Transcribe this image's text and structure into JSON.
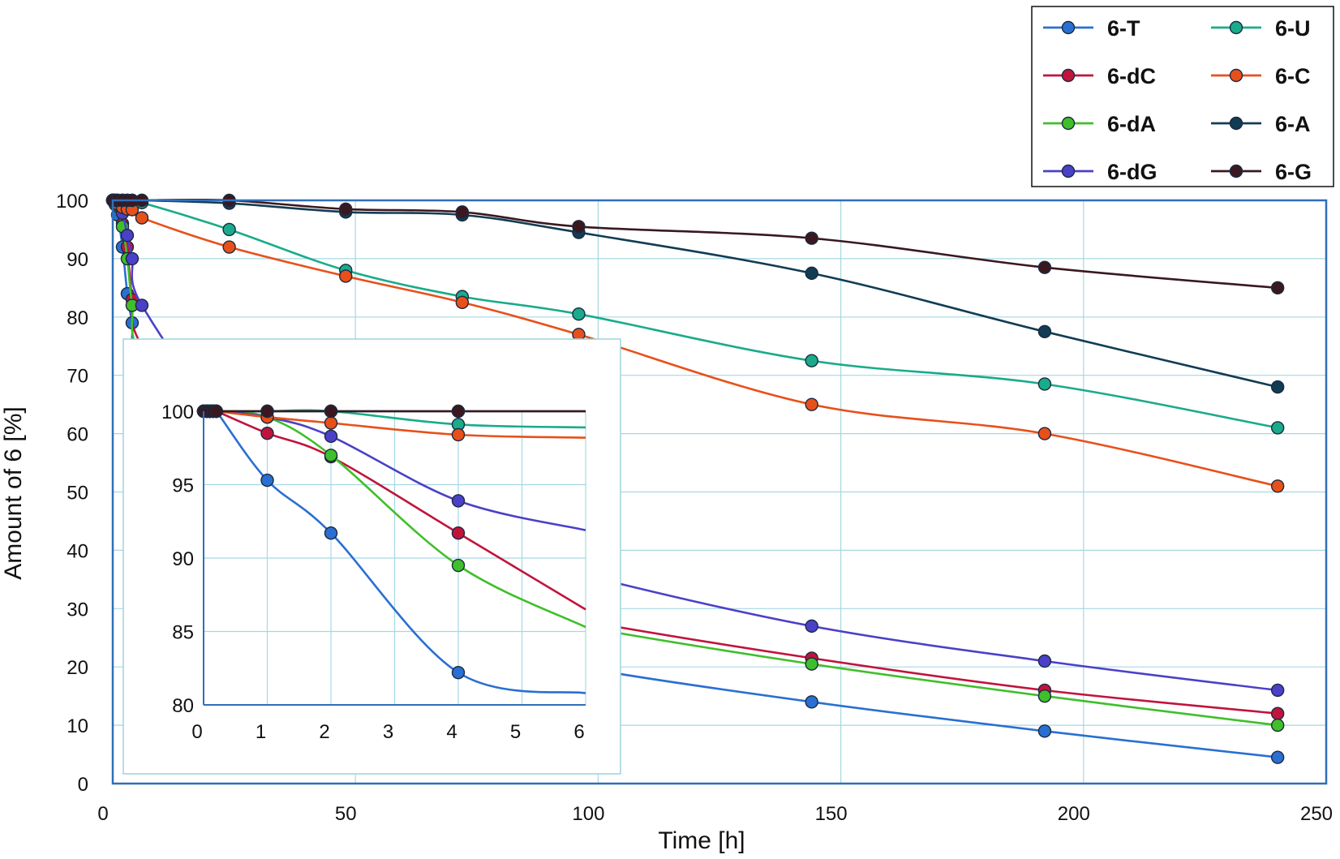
{
  "chart_data": [
    {
      "id": "main",
      "type": "line",
      "title": "",
      "xlabel": "Time [h]",
      "ylabel": "Amount of 6 [%]",
      "xlim": [
        0,
        250
      ],
      "ylim": [
        0,
        100
      ],
      "xticks": [
        0,
        50,
        100,
        150,
        200,
        250
      ],
      "yticks": [
        0,
        10,
        20,
        30,
        40,
        50,
        60,
        70,
        80,
        90,
        100
      ],
      "grid": true,
      "legend": "top-right",
      "series": [
        {
          "name": "6-T",
          "color": "#2a6fd1",
          "x": [
            0,
            0.5,
            1,
            2,
            3,
            4,
            6,
            24,
            48,
            72,
            96,
            144,
            192,
            240
          ],
          "y": [
            100,
            99.3,
            97.5,
            92,
            84,
            79,
            70,
            45,
            33,
            25,
            20,
            14,
            9,
            4.5
          ]
        },
        {
          "name": "6-dC",
          "color": "#c0143c",
          "x": [
            0,
            0.5,
            1,
            2,
            3,
            4,
            6,
            24,
            48,
            72,
            96,
            144,
            192,
            240
          ],
          "y": [
            100,
            99.9,
            99.2,
            96,
            92,
            83,
            75,
            53,
            40,
            32,
            28,
            21.5,
            16,
            12
          ]
        },
        {
          "name": "6-dA",
          "color": "#3fbf2a",
          "x": [
            0,
            0.5,
            1,
            2,
            3,
            4,
            6,
            24,
            48,
            72,
            96,
            144,
            192,
            240
          ],
          "y": [
            100,
            99.9,
            99,
            95.5,
            90,
            82,
            73,
            52,
            39,
            31,
            27,
            20.5,
            15,
            10
          ]
        },
        {
          "name": "6-dG",
          "color": "#4b40c8",
          "x": [
            0,
            0.5,
            1,
            2,
            3,
            4,
            6,
            24,
            48,
            72,
            96,
            144,
            192,
            240
          ],
          "y": [
            100,
            99.9,
            99.3,
            97.8,
            94,
            90,
            82,
            62,
            50,
            42,
            36,
            27,
            21,
            16
          ]
        },
        {
          "name": "6-U",
          "color": "#1aab8a",
          "x": [
            0,
            0.5,
            1,
            2,
            3,
            4,
            6,
            24,
            48,
            72,
            96,
            144,
            192,
            240
          ],
          "y": [
            100,
            100,
            100,
            100,
            100,
            99.7,
            99.6,
            95,
            88,
            83.5,
            80.5,
            72.5,
            68.5,
            61
          ]
        },
        {
          "name": "6-C",
          "color": "#e8501a",
          "x": [
            0,
            0.5,
            1,
            2,
            3,
            4,
            6,
            24,
            48,
            72,
            96,
            144,
            192,
            240
          ],
          "y": [
            100,
            99.9,
            99.4,
            98.8,
            98.5,
            98.4,
            97,
            92,
            87,
            82.5,
            77,
            65,
            60,
            51
          ]
        },
        {
          "name": "6-A",
          "color": "#123c54",
          "x": [
            0,
            0.5,
            1,
            2,
            3,
            4,
            6,
            24,
            48,
            72,
            96,
            144,
            192,
            240
          ],
          "y": [
            100,
            100,
            100,
            100,
            100,
            100,
            100,
            99.5,
            98,
            97.5,
            94.5,
            87.5,
            77.5,
            68
          ]
        },
        {
          "name": "6-G",
          "color": "#3a1820",
          "x": [
            0,
            0.5,
            1,
            2,
            3,
            4,
            6,
            24,
            48,
            72,
            96,
            144,
            192,
            240
          ],
          "y": [
            100,
            100,
            100,
            100,
            100,
            100,
            100,
            100,
            98.5,
            98,
            95.5,
            93.5,
            88.5,
            85
          ]
        }
      ]
    },
    {
      "id": "inset",
      "type": "line",
      "title": "",
      "xlabel": "",
      "ylabel": "",
      "xlim": [
        0,
        6
      ],
      "ylim": [
        80,
        100
      ],
      "xticks": [
        0,
        1,
        2,
        3,
        4,
        5,
        6
      ],
      "yticks": [
        80,
        85,
        90,
        95,
        100
      ],
      "grid": true,
      "series": [
        {
          "name": "6-T",
          "color": "#2a6fd1",
          "x": [
            0,
            0.05,
            0.1,
            0.15,
            0.2,
            1,
            2,
            4,
            6
          ],
          "y": [
            100,
            100,
            100,
            100,
            100,
            95.3,
            91.7,
            82.2,
            80.8
          ]
        },
        {
          "name": "6-dC",
          "color": "#c0143c",
          "x": [
            0,
            0.05,
            0.1,
            0.15,
            0.2,
            1,
            2,
            4,
            6
          ],
          "y": [
            100,
            100,
            100,
            100,
            100,
            98.5,
            96.9,
            91.7,
            86.5
          ]
        },
        {
          "name": "6-dA",
          "color": "#3fbf2a",
          "x": [
            0,
            0.05,
            0.1,
            0.15,
            0.2,
            1,
            2,
            4,
            6
          ],
          "y": [
            100,
            100,
            100,
            100,
            100,
            99.6,
            97.0,
            89.5,
            85.3
          ]
        },
        {
          "name": "6-dG",
          "color": "#4b40c8",
          "x": [
            0,
            0.05,
            0.1,
            0.15,
            0.2,
            1,
            2,
            4,
            6
          ],
          "y": [
            100,
            100,
            100,
            100,
            100,
            99.6,
            98.3,
            93.9,
            91.9
          ]
        },
        {
          "name": "6-U",
          "color": "#1aab8a",
          "x": [
            0,
            0.05,
            0.1,
            0.15,
            0.2,
            1,
            2,
            4,
            6
          ],
          "y": [
            100,
            100,
            100,
            100,
            100,
            100,
            100,
            99.1,
            98.9
          ]
        },
        {
          "name": "6-C",
          "color": "#e8501a",
          "x": [
            0,
            0.05,
            0.1,
            0.15,
            0.2,
            1,
            2,
            4,
            6
          ],
          "y": [
            100,
            100,
            100,
            100,
            100,
            99.6,
            99.2,
            98.4,
            98.2
          ]
        },
        {
          "name": "6-A",
          "color": "#123c54",
          "x": [
            0,
            0.05,
            0.1,
            0.15,
            0.2,
            1,
            2,
            4,
            6
          ],
          "y": [
            100,
            100,
            100,
            100,
            100,
            100,
            100,
            100,
            100
          ]
        },
        {
          "name": "6-G",
          "color": "#3a1820",
          "x": [
            0,
            0.05,
            0.1,
            0.15,
            0.2,
            1,
            2,
            4,
            6
          ],
          "y": [
            100,
            100,
            100,
            100,
            100,
            100,
            100,
            100,
            100
          ]
        }
      ]
    }
  ]
}
